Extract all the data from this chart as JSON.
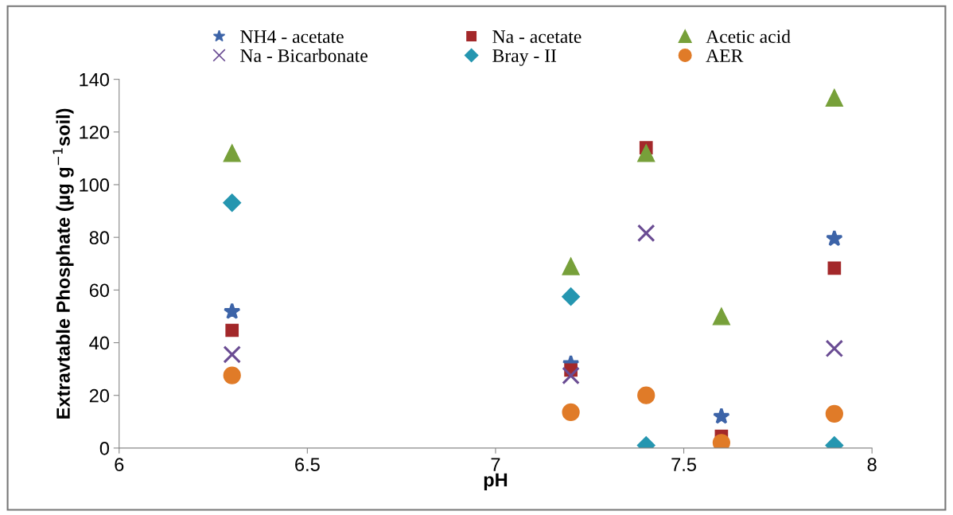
{
  "chart_data": {
    "type": "scatter",
    "xlabel": "pH",
    "ylabel": "Extravtable Phosphate (µg g$^{−1}$soil)",
    "x": [
      6.3,
      7.2,
      7.4,
      7.6,
      7.9
    ],
    "series": [
      {
        "name": "NH4 - acetate",
        "color": "#3d64a8",
        "marker": "star",
        "values": [
          51.8,
          32,
          null,
          12,
          79.5
        ]
      },
      {
        "name": "Na - acetate",
        "color": "#a3282a",
        "marker": "square",
        "values": [
          44.7,
          29.6,
          114,
          4.5,
          68.3
        ]
      },
      {
        "name": "Acetic acid",
        "color": "#77a03a",
        "marker": "triangle",
        "values": [
          112,
          69,
          112,
          50,
          133
        ]
      },
      {
        "name": "Na - Bicarbonate",
        "color": "#6a4c93",
        "marker": "cross",
        "values": [
          35.5,
          27.5,
          81.6,
          null,
          37.8
        ]
      },
      {
        "name": "Bray - II",
        "color": "#2596b0",
        "marker": "diamond",
        "values": [
          93.1,
          57.5,
          1,
          null,
          1
        ]
      },
      {
        "name": "AER",
        "color": "#e07b28",
        "marker": "circle",
        "values": [
          27.6,
          13.6,
          20,
          2,
          13
        ]
      }
    ],
    "xlim": [
      6,
      8
    ],
    "xticks": [
      6,
      6.5,
      7,
      7.5,
      8
    ],
    "ylim": [
      0,
      140
    ],
    "yticks": [
      0,
      20,
      40,
      60,
      80,
      100,
      120,
      140
    ],
    "grid": false,
    "legend": "top"
  }
}
